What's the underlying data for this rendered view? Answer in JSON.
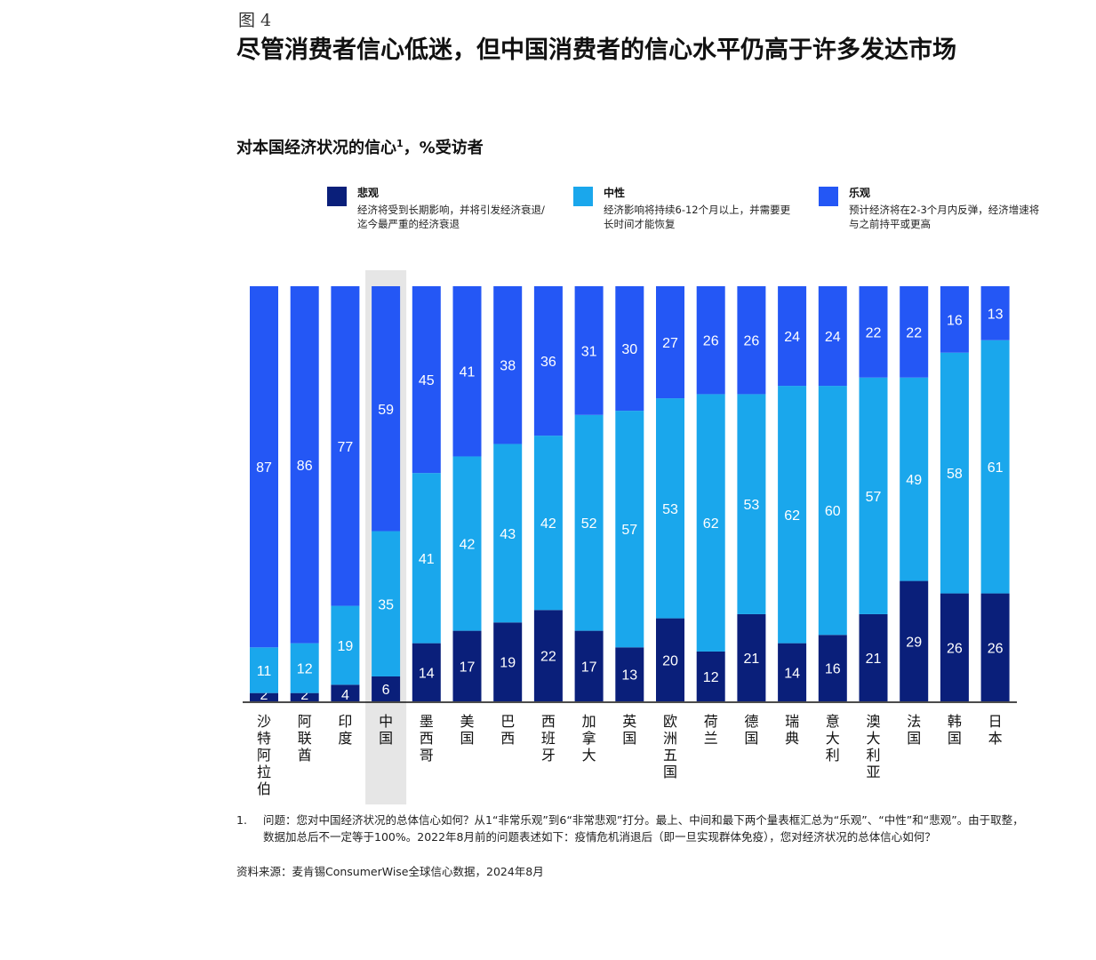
{
  "figure_label": "图 4",
  "title": "尽管消费者信心低迷，但中国消费者的信心水平仍高于许多发达市场",
  "subtitle": "对本国经济状况的信心",
  "subtitle_note_ref": "1",
  "subtitle_unit": "，%受访者",
  "colors": {
    "pessimistic": "#0a1f7a",
    "neutral": "#1aa7ec",
    "optimistic": "#2457f5",
    "highlight": "#e6e6e6"
  },
  "legend": [
    {
      "key": "pessimistic",
      "title": "悲观",
      "desc": "经济将受到长期影响，并将引发经济衰退/迄今最严重的经济衰退"
    },
    {
      "key": "neutral",
      "title": "中性",
      "desc": "经济影响将持续6-12个月以上，并需要更长时间才能恢复"
    },
    {
      "key": "optimistic",
      "title": "乐观",
      "desc": "预计经济将在2-3个月内反弹，经济增速将与之前持平或更高"
    }
  ],
  "chart_data": {
    "type": "bar",
    "stacked": true,
    "title": "对本国经济状况的信心",
    "ylabel": "%受访者",
    "highlight_category": "中国",
    "categories": [
      "沙特阿拉伯",
      "阿联酋",
      "印度",
      "中国",
      "墨西哥",
      "美国",
      "巴西",
      "西班牙",
      "加拿大",
      "英国",
      "欧洲五国",
      "荷兰",
      "德国",
      "瑞典",
      "意大利",
      "澳大利亚",
      "法国",
      "韩国",
      "日本"
    ],
    "series": [
      {
        "name": "悲观",
        "color_key": "pessimistic",
        "values": [
          2,
          2,
          4,
          6,
          14,
          17,
          19,
          22,
          17,
          13,
          20,
          12,
          21,
          14,
          16,
          21,
          29,
          26,
          26
        ]
      },
      {
        "name": "中性",
        "color_key": "neutral",
        "values": [
          11,
          12,
          19,
          35,
          41,
          42,
          43,
          42,
          52,
          57,
          53,
          62,
          53,
          62,
          60,
          57,
          49,
          58,
          61
        ]
      },
      {
        "name": "乐观",
        "color_key": "optimistic",
        "values": [
          87,
          86,
          77,
          59,
          45,
          41,
          38,
          36,
          31,
          30,
          27,
          26,
          26,
          24,
          24,
          22,
          22,
          16,
          13
        ]
      }
    ]
  },
  "footnote_num": "1.",
  "footnote": "问题：您对中国经济状况的总体信心如何？从1“非常乐观”到6“非常悲观”打分。最上、中间和最下两个量表框汇总为“乐观”、“中性”和“悲观”。由于取整，数据加总后不一定等于100%。2022年8月前的问题表述如下：疫情危机消退后（即一旦实现群体免疫），您对经济状况的总体信心如何？",
  "source": "资料来源：麦肯锡ConsumerWise全球信心数据，2024年8月"
}
